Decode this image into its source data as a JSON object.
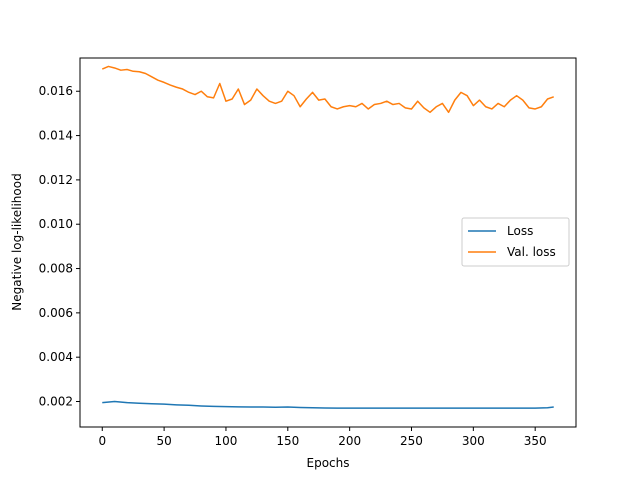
{
  "chart_data": {
    "type": "line",
    "title": "",
    "xlabel": "Epochs",
    "ylabel": "Negative log-likelihood",
    "xlim": [
      -18,
      383
    ],
    "ylim": [
      0.00085,
      0.0175
    ],
    "x_ticks": [
      0,
      50,
      100,
      150,
      200,
      250,
      300,
      350
    ],
    "x_tick_labels": [
      "0",
      "50",
      "100",
      "150",
      "200",
      "250",
      "300",
      "350"
    ],
    "y_ticks": [
      0.002,
      0.004,
      0.006,
      0.008,
      0.01,
      0.012,
      0.014,
      0.016
    ],
    "y_tick_labels": [
      "0.002",
      "0.004",
      "0.006",
      "0.008",
      "0.010",
      "0.012",
      "0.014",
      "0.016"
    ],
    "grid": false,
    "legend_position": "center-right",
    "series": [
      {
        "name": "Loss",
        "color": "#1f77b4",
        "x": [
          0,
          10,
          20,
          30,
          40,
          50,
          60,
          70,
          80,
          90,
          100,
          110,
          120,
          130,
          140,
          150,
          160,
          170,
          180,
          190,
          200,
          210,
          220,
          230,
          240,
          250,
          260,
          270,
          280,
          290,
          300,
          310,
          320,
          330,
          340,
          350,
          360,
          365
        ],
        "y": [
          0.00195,
          0.002,
          0.00195,
          0.00192,
          0.0019,
          0.00188,
          0.00185,
          0.00183,
          0.0018,
          0.00178,
          0.00177,
          0.00176,
          0.00175,
          0.00175,
          0.00174,
          0.00175,
          0.00173,
          0.00172,
          0.00171,
          0.0017,
          0.0017,
          0.0017,
          0.0017,
          0.0017,
          0.0017,
          0.0017,
          0.0017,
          0.0017,
          0.0017,
          0.0017,
          0.0017,
          0.0017,
          0.0017,
          0.0017,
          0.0017,
          0.0017,
          0.00172,
          0.00175
        ]
      },
      {
        "name": "Val. loss",
        "color": "#ff7f0e",
        "x": [
          0,
          5,
          10,
          15,
          20,
          25,
          30,
          35,
          40,
          45,
          50,
          55,
          60,
          65,
          70,
          75,
          80,
          85,
          90,
          95,
          100,
          105,
          110,
          115,
          120,
          125,
          130,
          135,
          140,
          145,
          150,
          155,
          160,
          165,
          170,
          175,
          180,
          185,
          190,
          195,
          200,
          205,
          210,
          215,
          220,
          225,
          230,
          235,
          240,
          245,
          250,
          255,
          260,
          265,
          270,
          275,
          280,
          285,
          290,
          295,
          300,
          305,
          310,
          315,
          320,
          325,
          330,
          335,
          340,
          345,
          350,
          355,
          360,
          365
        ],
        "y": [
          0.017,
          0.01712,
          0.01705,
          0.01695,
          0.01698,
          0.0169,
          0.01688,
          0.0168,
          0.01665,
          0.0165,
          0.0164,
          0.01628,
          0.01618,
          0.0161,
          0.01595,
          0.01585,
          0.016,
          0.01575,
          0.0157,
          0.01635,
          0.01555,
          0.01565,
          0.0161,
          0.0154,
          0.0156,
          0.0161,
          0.0158,
          0.01555,
          0.01545,
          0.01555,
          0.016,
          0.0158,
          0.0153,
          0.01565,
          0.01595,
          0.0156,
          0.01565,
          0.0153,
          0.0152,
          0.0153,
          0.01535,
          0.0153,
          0.01545,
          0.0152,
          0.0154,
          0.01545,
          0.01555,
          0.0154,
          0.01545,
          0.01525,
          0.0152,
          0.01555,
          0.01525,
          0.01505,
          0.0153,
          0.01545,
          0.01505,
          0.0156,
          0.01595,
          0.0158,
          0.01535,
          0.0156,
          0.0153,
          0.0152,
          0.01545,
          0.0153,
          0.0156,
          0.0158,
          0.0156,
          0.01525,
          0.0152,
          0.0153,
          0.01565,
          0.01575
        ]
      }
    ]
  }
}
